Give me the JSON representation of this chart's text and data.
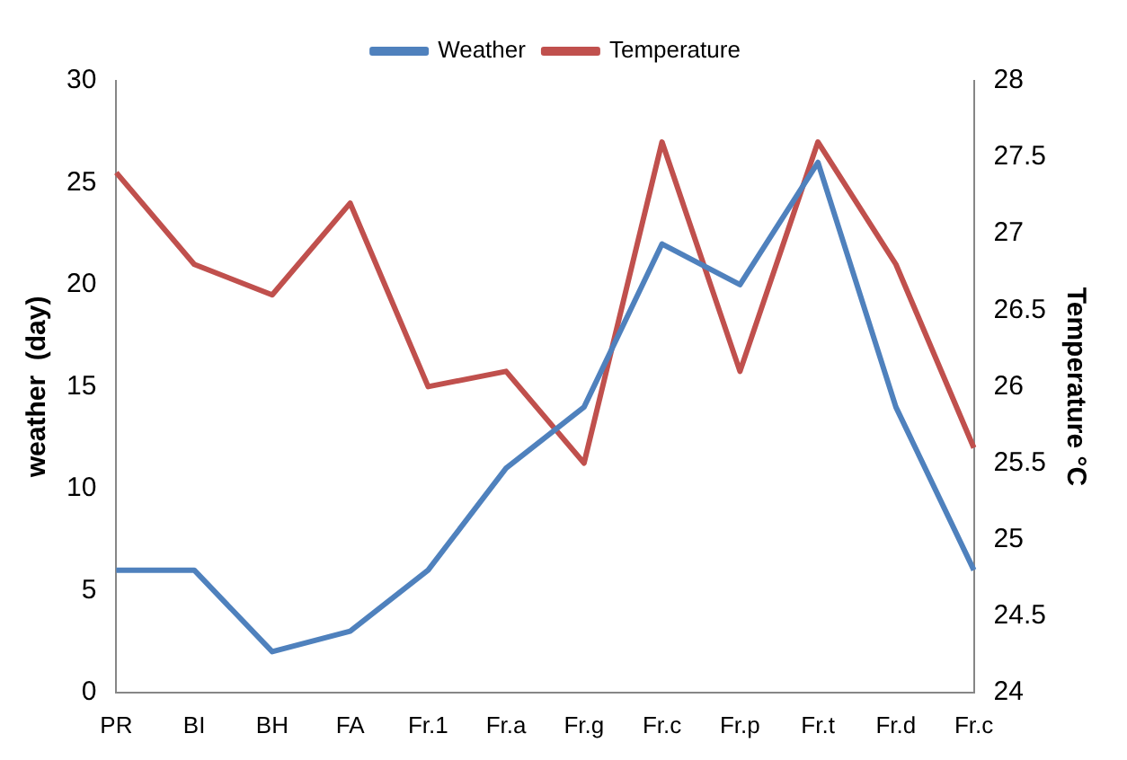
{
  "chart_data": {
    "type": "line",
    "categories": [
      "PR",
      "BI",
      "BH",
      "FA",
      "Fr.1",
      "Fr.a",
      "Fr.g",
      "Fr.c",
      "Fr.p",
      "Fr.t",
      "Fr.d",
      "Fr.c"
    ],
    "series": [
      {
        "name": "Weather",
        "color": "#4f81bd",
        "values": [
          6,
          6,
          2,
          3,
          6,
          11,
          14,
          22,
          20,
          26,
          14,
          6
        ]
      },
      {
        "name": "Temperature",
        "color": "#c0504d",
        "axis": "y2",
        "values": [
          27.4,
          26.8,
          26.6,
          27.2,
          26.0,
          26.1,
          25.5,
          27.6,
          26.1,
          27.6,
          26.8,
          25.6
        ]
      }
    ],
    "ylabel": "weather  (day)",
    "y2label": "Temperature °C",
    "ylim": [
      0,
      30
    ],
    "yticks": [
      0,
      5,
      10,
      15,
      20,
      25,
      30
    ],
    "y2lim": [
      24,
      28
    ],
    "y2ticks": [
      24,
      24.5,
      25,
      25.5,
      26,
      26.5,
      27,
      27.5,
      28
    ],
    "grid": false,
    "legend": "top",
    "marker": "none",
    "line_style": "solid"
  }
}
